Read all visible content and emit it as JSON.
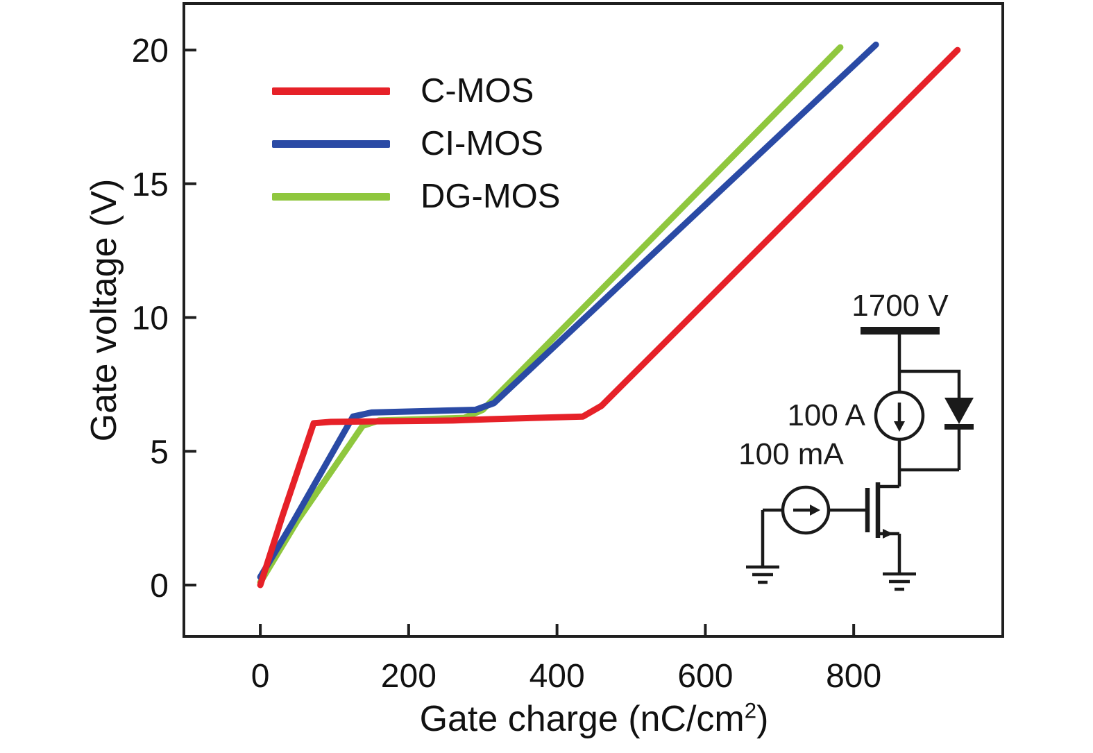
{
  "figure": {
    "background": "#ffffff",
    "frame_color": "#1f1f1f"
  },
  "axes": {
    "x_label_main": "Gate charge (nC/cm",
    "x_label_sup": "2",
    "x_label_end": ")",
    "y_label": "Gate voltage (V)"
  },
  "inset": {
    "voltage_label": "1700 V",
    "load_current_label": "100 A",
    "gate_current_label": "100 mA",
    "line_color": "#1a1a1a"
  },
  "chart_data": {
    "type": "line",
    "title": "",
    "xlabel": "Gate charge (nC/cm²)",
    "ylabel": "Gate voltage (V)",
    "xlim": [
      -103,
      1001
    ],
    "ylim": [
      -1.92,
      21.74
    ],
    "x_ticks": [
      0,
      200,
      400,
      600,
      800
    ],
    "y_ticks": [
      0,
      5,
      10,
      15,
      20
    ],
    "grid": false,
    "legend_position": "upper-left",
    "line_width": 9,
    "series": [
      {
        "name": "DG-MOS",
        "color": "#8fc73e",
        "points": [
          [
            0,
            0.1
          ],
          [
            50,
            2.4
          ],
          [
            138,
            5.95
          ],
          [
            160,
            6.15
          ],
          [
            275,
            6.25
          ],
          [
            300,
            6.55
          ],
          [
            782,
            20.1
          ]
        ]
      },
      {
        "name": "CI-MOS",
        "color": "#2a4aa5",
        "points": [
          [
            0,
            0.3
          ],
          [
            45,
            2.4
          ],
          [
            125,
            6.3
          ],
          [
            150,
            6.45
          ],
          [
            290,
            6.55
          ],
          [
            315,
            6.8
          ],
          [
            830,
            20.2
          ]
        ]
      },
      {
        "name": "C-MOS",
        "color": "#e62128",
        "points": [
          [
            0,
            0.0
          ],
          [
            30,
            2.6
          ],
          [
            72,
            6.05
          ],
          [
            95,
            6.1
          ],
          [
            260,
            6.15
          ],
          [
            310,
            6.2
          ],
          [
            435,
            6.3
          ],
          [
            460,
            6.7
          ],
          [
            940,
            20.0
          ]
        ]
      }
    ],
    "legend_order": [
      "C-MOS",
      "CI-MOS",
      "DG-MOS"
    ]
  }
}
